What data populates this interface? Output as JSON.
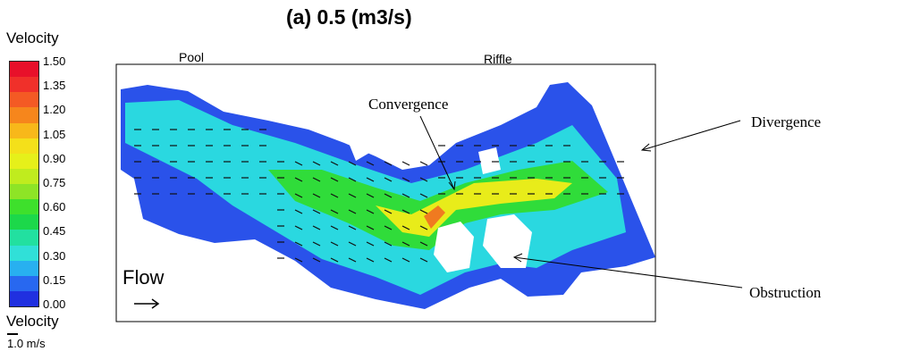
{
  "title": "(a) 0.5 (m3/s)",
  "colorbar": {
    "label": "Velocity",
    "ticks": [
      "1.50",
      "1.35",
      "1.20",
      "1.05",
      "0.90",
      "0.75",
      "0.60",
      "0.45",
      "0.30",
      "0.15",
      "0.00"
    ],
    "colors": [
      "#e8102a",
      "#f0302a",
      "#f45a24",
      "#f6861c",
      "#f8b81a",
      "#f4e01a",
      "#e6f01a",
      "#c0ec1e",
      "#8ee426",
      "#3ee02c",
      "#1cd84a",
      "#22e0a0",
      "#30e0d8",
      "#28b0f0",
      "#2868f0",
      "#2030e0"
    ]
  },
  "scale": {
    "label": "Velocity",
    "value": "1.0 m/s"
  },
  "plot": {
    "left_label": "Pool",
    "right_label": "Riffle",
    "flow_label": "Flow"
  },
  "annotations": {
    "convergence": "Convergence",
    "divergence": "Divergence",
    "obstruction": "Obstruction"
  }
}
